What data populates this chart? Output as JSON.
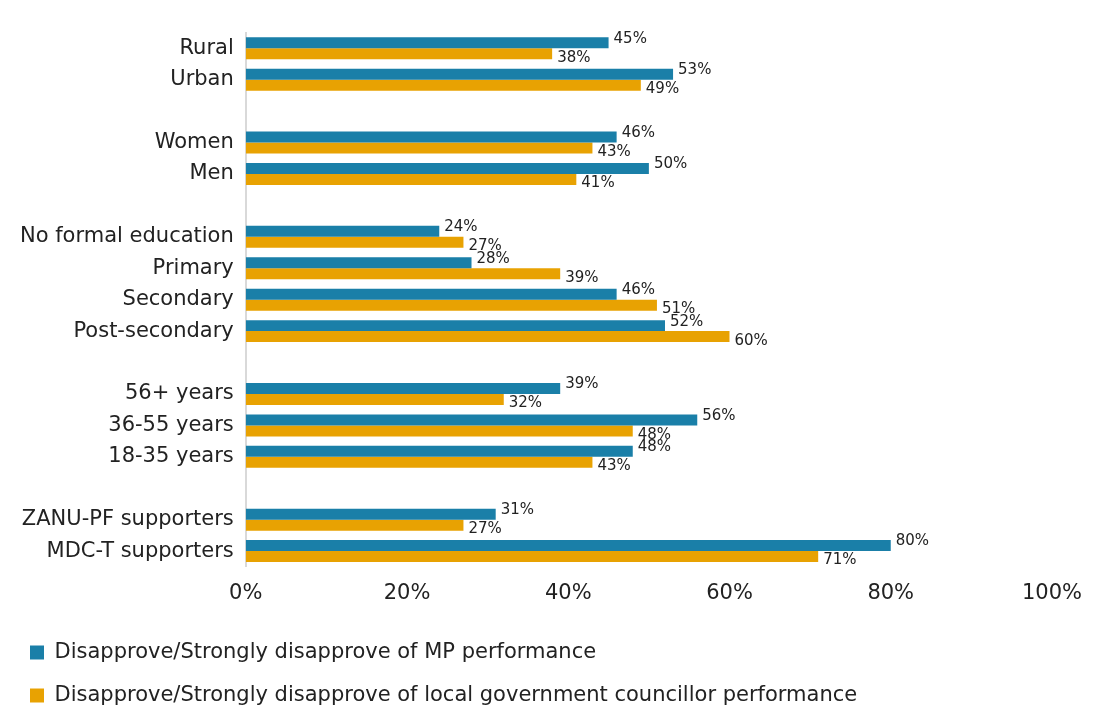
{
  "chart_data": {
    "type": "bar",
    "orientation": "horizontal",
    "categories": [
      "Rural",
      "Urban",
      null,
      "Women",
      "Men",
      null,
      "No formal education",
      "Primary",
      "Secondary",
      "Post-secondary",
      null,
      "56+ years",
      "36-55 years",
      "18-35 years",
      null,
      "ZANU-PF supporters",
      "MDC-T supporters"
    ],
    "series": [
      {
        "name": "Disapprove/Strongly disapprove of MP performance",
        "color": "#1a7fa8",
        "values": [
          45,
          53,
          null,
          46,
          50,
          null,
          24,
          28,
          46,
          52,
          null,
          39,
          56,
          48,
          null,
          31,
          80
        ],
        "value_labels": [
          "45%",
          "53%",
          null,
          "46%",
          "50%",
          null,
          "24%",
          "28%",
          "46%",
          "52%",
          null,
          "39%",
          "56%",
          "48%",
          null,
          "31%",
          "80%"
        ]
      },
      {
        "name": "Disapprove/Strongly disapprove of local government councillor performance",
        "color": "#e8a202",
        "values": [
          38,
          49,
          null,
          43,
          41,
          null,
          27,
          39,
          51,
          60,
          null,
          32,
          48,
          43,
          null,
          27,
          71
        ],
        "value_labels": [
          "38%",
          "49%",
          null,
          "43%",
          "41%",
          null,
          "27%",
          "39%",
          "51%",
          "60%",
          null,
          "32%",
          "48%",
          "43%",
          null,
          "27%",
          "71%"
        ]
      }
    ],
    "xlim": [
      0,
      100
    ],
    "xticks": [
      {
        "value": 0,
        "label": "0%"
      },
      {
        "value": 20,
        "label": "20%"
      },
      {
        "value": 40,
        "label": "40%"
      },
      {
        "value": 60,
        "label": "60%"
      },
      {
        "value": 80,
        "label": "80%"
      },
      {
        "value": 100,
        "label": "100%"
      }
    ],
    "grid": false,
    "legend": "bottom"
  }
}
